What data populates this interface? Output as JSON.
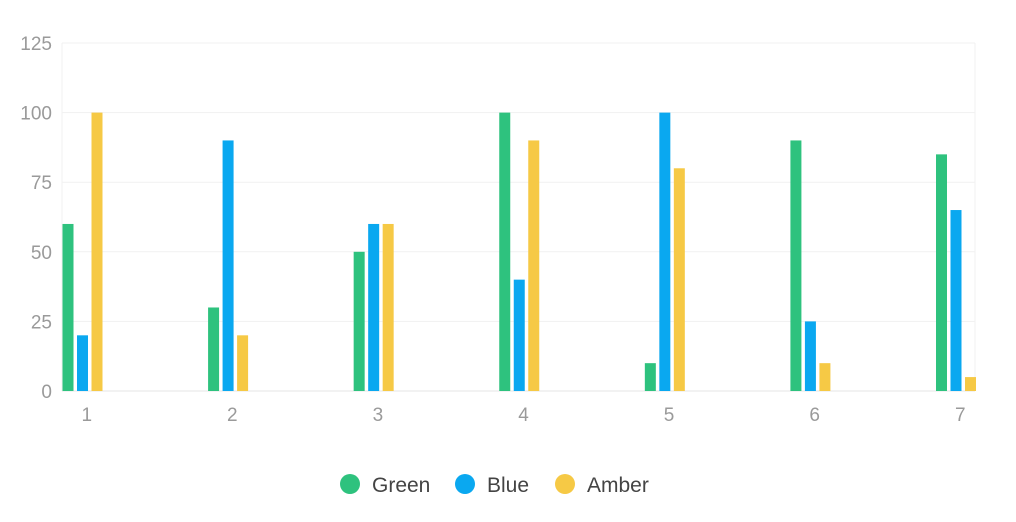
{
  "chart_data": {
    "type": "bar",
    "title": "",
    "xlabel": "",
    "ylabel": "",
    "categories": [
      "1",
      "2",
      "3",
      "4",
      "5",
      "6",
      "7"
    ],
    "ylim": [
      0,
      125
    ],
    "yticks": [
      0,
      25,
      50,
      75,
      100,
      125
    ],
    "grid": true,
    "legend_position": "bottom",
    "series": [
      {
        "name": "Green",
        "color": "#2ec27e",
        "values": [
          60,
          30,
          50,
          100,
          10,
          90,
          85
        ]
      },
      {
        "name": "Blue",
        "color": "#0aa8f0",
        "values": [
          20,
          90,
          60,
          40,
          100,
          25,
          65
        ]
      },
      {
        "name": "Amber",
        "color": "#f6c945",
        "values": [
          100,
          20,
          60,
          90,
          80,
          10,
          5
        ]
      }
    ]
  }
}
